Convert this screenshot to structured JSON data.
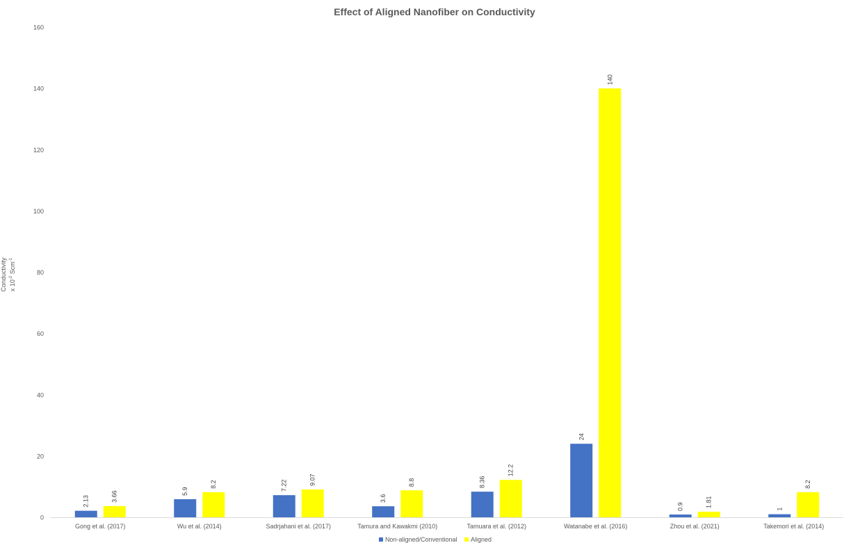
{
  "chart_data": {
    "type": "bar",
    "title": "Effect of Aligned Nanofiber on Conductivity",
    "ylabel_line1": "Conductivity",
    "ylabel_line2_prefix": "x 10",
    "ylabel_exp1": "-2",
    "ylabel_line2_mid": " Scm",
    "ylabel_exp2": "-1",
    "ylim": [
      0,
      160
    ],
    "yticks": [
      0,
      20,
      40,
      60,
      80,
      100,
      120,
      140,
      160
    ],
    "categories": [
      "Gong et al. (2017)",
      "Wu et al. (2014)",
      "Sadrjahani et al. (2017)",
      "Tamura and Kawakmi (2010)",
      "Tamuara et al.  (2012)",
      "Watanabe et al. (2016)",
      "Zhou et al. (2021)",
      "Takemori et al. (2014)"
    ],
    "series": [
      {
        "name": "Non-aligned/Conventional",
        "color": "#4472C4",
        "values": [
          2.13,
          5.9,
          7.22,
          3.6,
          8.36,
          24,
          0.9,
          1
        ]
      },
      {
        "name": "Aligned",
        "color": "#FFFF00",
        "values": [
          3.66,
          8.2,
          9.07,
          8.8,
          12.2,
          140,
          1.81,
          8.2
        ]
      }
    ],
    "grid": false,
    "legend_position": "bottom",
    "data_labels": true
  }
}
